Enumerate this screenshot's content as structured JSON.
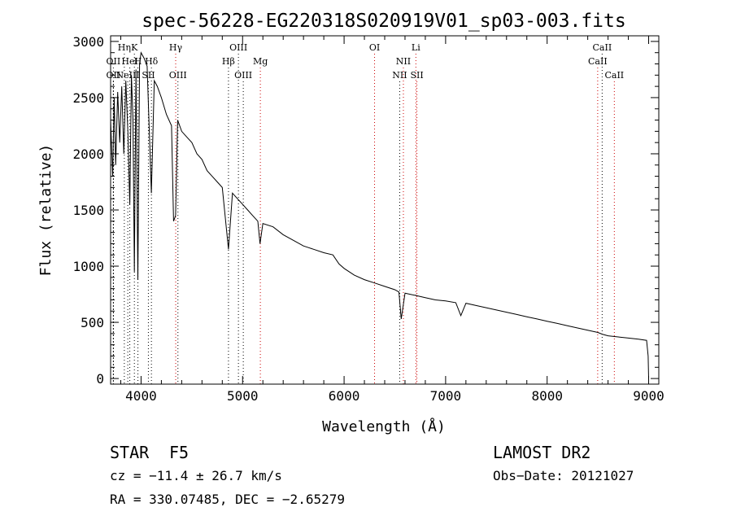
{
  "chart_data": {
    "type": "line",
    "title": "spec-56228-EG220318S020919V01_sp03-003.fits",
    "xlabel": "Wavelength (Å)",
    "ylabel": "Flux (relative)",
    "xlim": [
      3700,
      9100
    ],
    "ylim": [
      -50,
      3050
    ],
    "x_ticks": [
      4000,
      5000,
      6000,
      7000,
      8000,
      9000
    ],
    "y_ticks": [
      0,
      500,
      1000,
      1500,
      2000,
      2500,
      3000
    ],
    "grid": false,
    "series": [
      {
        "name": "flux",
        "x": [
          3700,
          3720,
          3735,
          3750,
          3770,
          3790,
          3810,
          3830,
          3850,
          3870,
          3889,
          3905,
          3920,
          3934,
          3950,
          3968,
          3985,
          4000,
          4030,
          4060,
          4101,
          4130,
          4160,
          4200,
          4250,
          4300,
          4320,
          4340,
          4360,
          4400,
          4450,
          4500,
          4550,
          4600,
          4650,
          4700,
          4750,
          4800,
          4861,
          4900,
          4950,
          5000,
          5050,
          5100,
          5150,
          5172,
          5200,
          5300,
          5400,
          5500,
          5600,
          5700,
          5800,
          5890,
          5950,
          6000,
          6100,
          6200,
          6300,
          6400,
          6500,
          6540,
          6563,
          6600,
          6700,
          6800,
          6900,
          7000,
          7100,
          7150,
          7200,
          7300,
          7400,
          7500,
          7600,
          7700,
          7800,
          7900,
          8000,
          8100,
          8200,
          8300,
          8400,
          8500,
          8542,
          8600,
          8700,
          8800,
          8900,
          8980,
          8995,
          9000
        ],
        "y": [
          2300,
          1800,
          2500,
          1900,
          2550,
          2100,
          2600,
          2000,
          2650,
          2200,
          1550,
          2700,
          2300,
          950,
          2750,
          880,
          2800,
          2900,
          2850,
          2780,
          1650,
          2650,
          2600,
          2500,
          2350,
          2250,
          1400,
          1450,
          2300,
          2200,
          2150,
          2100,
          2000,
          1950,
          1850,
          1800,
          1750,
          1700,
          1150,
          1650,
          1600,
          1550,
          1500,
          1450,
          1400,
          1200,
          1380,
          1350,
          1280,
          1230,
          1180,
          1150,
          1120,
          1100,
          1020,
          980,
          920,
          880,
          850,
          820,
          790,
          770,
          530,
          760,
          740,
          720,
          700,
          690,
          675,
          560,
          670,
          650,
          630,
          610,
          590,
          570,
          550,
          530,
          510,
          490,
          470,
          450,
          430,
          410,
          395,
          380,
          370,
          360,
          350,
          340,
          200,
          0
        ]
      }
    ],
    "lines": [
      {
        "label": "OII",
        "wavelength": 3727,
        "color": "#000000",
        "row": 2
      },
      {
        "label": "OII",
        "wavelength": 3727,
        "color": "#000000",
        "row": 3
      },
      {
        "label": "Hη",
        "wavelength": 3835,
        "color": "#000000",
        "row": 1
      },
      {
        "label": "NeIII",
        "wavelength": 3869,
        "color": "#000000",
        "row": 3
      },
      {
        "label": "HeI",
        "wavelength": 3889,
        "color": "#000000",
        "row": 2
      },
      {
        "label": "K",
        "wavelength": 3934,
        "color": "#000000",
        "row": 1
      },
      {
        "label": "H",
        "wavelength": 3969,
        "color": "#000000",
        "row": 2
      },
      {
        "label": "Hδ",
        "wavelength": 4102,
        "color": "#000000",
        "row": 2
      },
      {
        "label": "SII",
        "wavelength": 4072,
        "color": "#000000",
        "row": 3
      },
      {
        "label": "Hγ",
        "wavelength": 4341,
        "color": "#cc0000",
        "row": 1
      },
      {
        "label": "OIII",
        "wavelength": 4363,
        "color": "#000000",
        "row": 3
      },
      {
        "label": "Hβ",
        "wavelength": 4861,
        "color": "#000000",
        "row": 2
      },
      {
        "label": "OIII",
        "wavelength": 4959,
        "color": "#000000",
        "row": 1
      },
      {
        "label": "OIII",
        "wavelength": 5007,
        "color": "#000000",
        "row": 3
      },
      {
        "label": "Mg",
        "wavelength": 5175,
        "color": "#cc0000",
        "row": 2
      },
      {
        "label": "OI",
        "wavelength": 6300,
        "color": "#cc0000",
        "row": 1
      },
      {
        "label": "NII",
        "wavelength": 6548,
        "color": "#000000",
        "row": 3
      },
      {
        "label": "NII",
        "wavelength": 6584,
        "color": "#cc0000",
        "row": 2
      },
      {
        "label": "Li",
        "wavelength": 6707,
        "color": "#cc0000",
        "row": 1
      },
      {
        "label": "SII",
        "wavelength": 6717,
        "color": "#cc0000",
        "row": 3
      },
      {
        "label": "CaII",
        "wavelength": 8498,
        "color": "#cc0000",
        "row": 2
      },
      {
        "label": "CaII",
        "wavelength": 8542,
        "color": "#000000",
        "row": 1
      },
      {
        "label": "CaII",
        "wavelength": 8662,
        "color": "#cc0000",
        "row": 3
      }
    ]
  },
  "info": {
    "object_class": "STAR",
    "subclass": "F5",
    "survey": "LAMOST DR2",
    "redshift": "cz = −11.4 ± 26.7 km/s",
    "obs_date": "Obs−Date: 20121027",
    "coordinates": "RA = 330.07485, DEC =  −2.65279"
  }
}
